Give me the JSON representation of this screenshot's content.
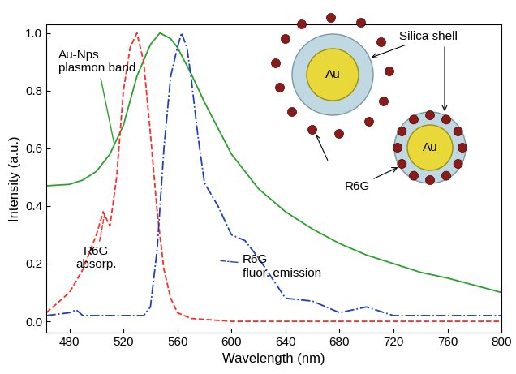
{
  "chart_data": {
    "type": "line",
    "x_label": "Wavelength (nm)",
    "y_label": "Intensity (a.u.)",
    "xlim": [
      463,
      800
    ],
    "xticks": [
      480,
      520,
      560,
      600,
      640,
      680,
      720,
      760,
      800
    ],
    "ylim": [
      -0.04,
      1.03
    ],
    "yticks": [
      {
        "value": 0,
        "label": "0.0"
      },
      0.2,
      0.4,
      0.6,
      0.8,
      {
        "value": 1,
        "label": "1.0"
      }
    ],
    "grid": false,
    "series": [
      {
        "name": "Au-Nps\nplasmon band",
        "color": "#2ca02c",
        "line_style": "solid",
        "x": [
          463,
          480,
          490,
          500,
          510,
          520,
          530,
          540,
          547,
          555,
          560,
          570,
          580,
          590,
          600,
          620,
          640,
          660,
          680,
          700,
          720,
          740,
          760,
          780,
          800
        ],
        "values": [
          0.47,
          0.475,
          0.49,
          0.52,
          0.58,
          0.68,
          0.85,
          0.96,
          1.0,
          0.98,
          0.95,
          0.86,
          0.76,
          0.67,
          0.58,
          0.46,
          0.38,
          0.32,
          0.27,
          0.23,
          0.2,
          0.17,
          0.15,
          0.125,
          0.1
        ]
      },
      {
        "name": "R6G\nabsorp.",
        "color": "#ff2a2a",
        "line_style": "dashed",
        "x": [
          463,
          480,
          490,
          500,
          505,
          510,
          515,
          520,
          525,
          530,
          535,
          540,
          545,
          550,
          555,
          560,
          570,
          600,
          800
        ],
        "values": [
          0.03,
          0.1,
          0.18,
          0.3,
          0.38,
          0.33,
          0.5,
          0.8,
          0.95,
          1.0,
          0.9,
          0.65,
          0.38,
          0.18,
          0.08,
          0.03,
          0.01,
          0.0,
          0.0
        ]
      },
      {
        "name": "R6G\nfluor. emission",
        "color": "#1f3fbf",
        "line_style": "dashdot",
        "x": [
          463,
          480,
          485,
          490,
          500,
          520,
          535,
          540,
          545,
          550,
          555,
          560,
          563,
          567,
          570,
          575,
          580,
          590,
          600,
          610,
          620,
          630,
          640,
          660,
          680,
          700,
          720,
          740,
          760,
          780,
          800
        ],
        "values": [
          0.02,
          0.03,
          0.04,
          0.02,
          0.02,
          0.02,
          0.02,
          0.05,
          0.25,
          0.6,
          0.85,
          0.95,
          1.0,
          0.95,
          0.85,
          0.65,
          0.48,
          0.4,
          0.3,
          0.28,
          0.22,
          0.15,
          0.08,
          0.07,
          0.03,
          0.05,
          0.02,
          0.02,
          0.02,
          0.02,
          0.02
        ]
      }
    ],
    "schematic": {
      "core": "Au",
      "shell": "Silica shell",
      "dye": "R6G"
    }
  }
}
